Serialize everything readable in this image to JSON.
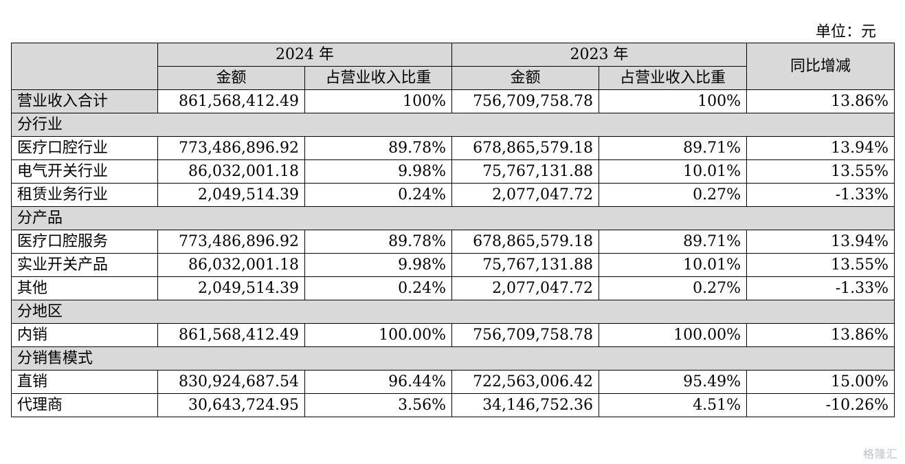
{
  "unit_label": "单位：元",
  "header": {
    "year_2024": "2024 年",
    "year_2023": "2023 年",
    "yoy": "同比增减",
    "amount": "金额",
    "share": "占营业收入比重"
  },
  "total": {
    "label": "营业收入合计",
    "amt_2024": "861,568,412.49",
    "pct_2024": "100%",
    "amt_2023": "756,709,758.78",
    "pct_2023": "100%",
    "yoy": "13.86%"
  },
  "sections": [
    {
      "title": "分行业",
      "rows": [
        {
          "label": "医疗口腔行业",
          "amt_2024": "773,486,896.92",
          "pct_2024": "89.78%",
          "amt_2023": "678,865,579.18",
          "pct_2023": "89.71%",
          "yoy": "13.94%"
        },
        {
          "label": "电气开关行业",
          "amt_2024": "86,032,001.18",
          "pct_2024": "9.98%",
          "amt_2023": "75,767,131.88",
          "pct_2023": "10.01%",
          "yoy": "13.55%"
        },
        {
          "label": "租赁业务行业",
          "amt_2024": "2,049,514.39",
          "pct_2024": "0.24%",
          "amt_2023": "2,077,047.72",
          "pct_2023": "0.27%",
          "yoy": "-1.33%"
        }
      ]
    },
    {
      "title": "分产品",
      "rows": [
        {
          "label": "医疗口腔服务",
          "amt_2024": "773,486,896.92",
          "pct_2024": "89.78%",
          "amt_2023": "678,865,579.18",
          "pct_2023": "89.71%",
          "yoy": "13.94%"
        },
        {
          "label": "实业开关产品",
          "amt_2024": "86,032,001.18",
          "pct_2024": "9.98%",
          "amt_2023": "75,767,131.88",
          "pct_2023": "10.01%",
          "yoy": "13.55%"
        },
        {
          "label": "其他",
          "amt_2024": "2,049,514.39",
          "pct_2024": "0.24%",
          "amt_2023": "2,077,047.72",
          "pct_2023": "0.27%",
          "yoy": "-1.33%"
        }
      ]
    },
    {
      "title": "分地区",
      "rows": [
        {
          "label": "内销",
          "amt_2024": "861,568,412.49",
          "pct_2024": "100.00%",
          "amt_2023": "756,709,758.78",
          "pct_2023": "100.00%",
          "yoy": "13.86%"
        }
      ]
    },
    {
      "title": "分销售模式",
      "rows": [
        {
          "label": "直销",
          "amt_2024": "830,924,687.54",
          "pct_2024": "96.44%",
          "amt_2023": "722,563,006.42",
          "pct_2023": "95.49%",
          "yoy": "15.00%"
        },
        {
          "label": "代理商",
          "amt_2024": "30,643,724.95",
          "pct_2024": "3.56%",
          "amt_2023": "34,146,752.36",
          "pct_2023": "4.51%",
          "yoy": "-10.26%"
        }
      ]
    }
  ],
  "watermark": "格隆汇"
}
